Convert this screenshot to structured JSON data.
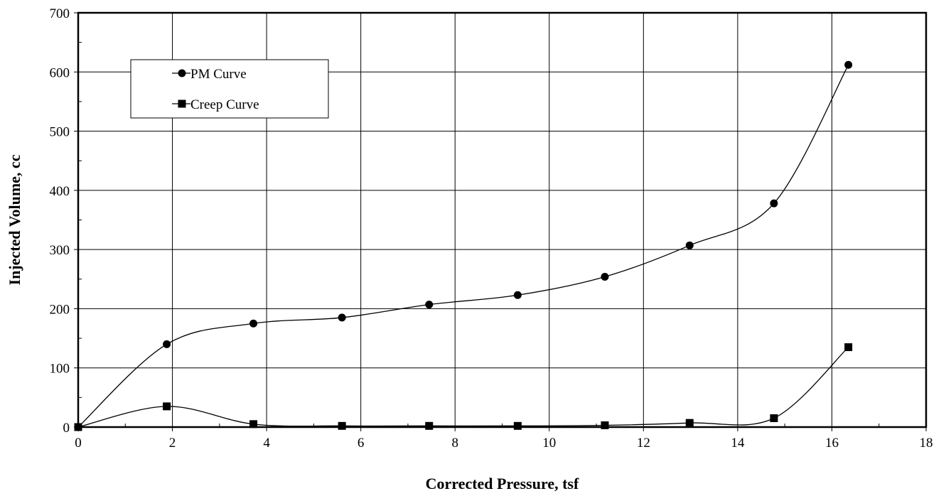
{
  "chart_data": {
    "type": "line",
    "xlabel": "Corrected Pressure, tsf",
    "ylabel": "Injected Volume, cc",
    "xlim": [
      0,
      18
    ],
    "ylim": [
      0,
      700
    ],
    "xticks": [
      0,
      2,
      4,
      6,
      8,
      10,
      12,
      14,
      16,
      18
    ],
    "yticks": [
      0,
      100,
      200,
      300,
      400,
      500,
      600,
      700
    ],
    "grid": true,
    "smooth": true,
    "legend": "top-left",
    "series": [
      {
        "name": "PM Curve",
        "marker": "circle",
        "x": [
          0,
          1.88,
          3.72,
          5.6,
          7.45,
          9.33,
          11.18,
          12.98,
          14.77,
          16.35
        ],
        "y": [
          0,
          140,
          175,
          185,
          207,
          223,
          254,
          307,
          378,
          612
        ]
      },
      {
        "name": "Creep Curve",
        "marker": "square",
        "x": [
          0,
          1.88,
          3.72,
          5.6,
          7.45,
          9.33,
          11.18,
          12.98,
          14.77,
          16.35
        ],
        "y": [
          0,
          35,
          5,
          2,
          2,
          2,
          3,
          7,
          15,
          135
        ]
      }
    ]
  }
}
